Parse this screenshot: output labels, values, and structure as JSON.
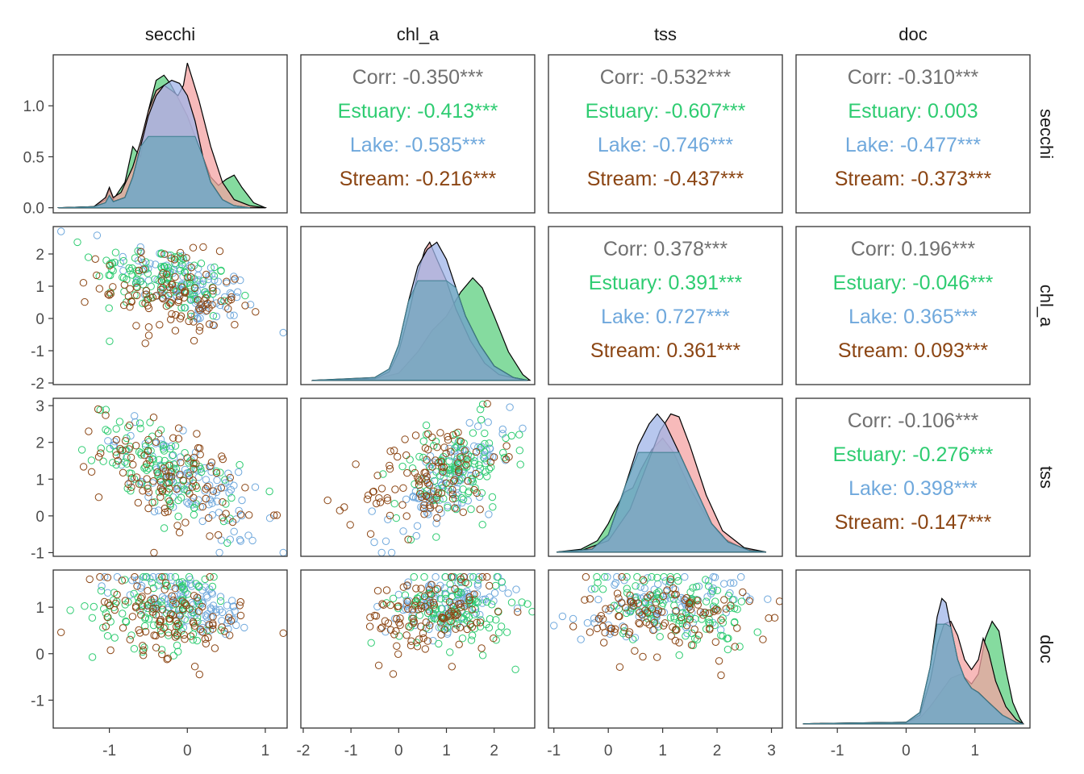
{
  "colors": {
    "estuary": "#2ecc71",
    "lake": "#6fa8dc",
    "stream": "#8b4513",
    "corr": "#707070",
    "frame": "#333333",
    "axis_text": "#4d4d4d"
  },
  "chart_data": {
    "type": "pairs",
    "variables": [
      "secchi",
      "chl_a",
      "tss",
      "doc"
    ],
    "groups": [
      {
        "name": "Estuary",
        "color": "#2ecc71",
        "density_fill": "#5ccf7f"
      },
      {
        "name": "Lake",
        "color": "#6fa8dc",
        "density_fill": "#9fb4e8"
      },
      {
        "name": "Stream",
        "color": "#8b4513",
        "density_fill": "#f4a3a3"
      }
    ],
    "x_ticks": {
      "secchi": [
        -1,
        0,
        1
      ],
      "chl_a": [
        -2,
        -1,
        0,
        1,
        2
      ],
      "tss": [
        -1,
        0,
        1,
        2,
        3
      ],
      "doc": [
        -1,
        0,
        1
      ]
    },
    "y_ticks": {
      "secchi": [
        "0.0",
        "0.5",
        "1.0"
      ],
      "chl_a": [
        -2,
        -1,
        0,
        1,
        2
      ],
      "tss": [
        -1,
        0,
        1,
        2,
        3
      ],
      "doc": [
        -1,
        0,
        1
      ]
    },
    "ranges": {
      "secchi": [
        -1.72,
        1.28
      ],
      "chl_a": [
        -2.05,
        2.85
      ],
      "tss": [
        -1.1,
        3.2
      ],
      "doc": [
        -1.6,
        1.8
      ]
    },
    "secchi_density_ylim": [
      -0.05,
      1.5
    ],
    "correlations": [
      {
        "row": 0,
        "col": 1,
        "lines": [
          "Corr: -0.350***",
          "Estuary: -0.413***",
          "Lake: -0.585***",
          "Stream: -0.216***"
        ]
      },
      {
        "row": 0,
        "col": 2,
        "lines": [
          "Corr: -0.532***",
          "Estuary: -0.607***",
          "Lake: -0.746***",
          "Stream: -0.437***"
        ]
      },
      {
        "row": 0,
        "col": 3,
        "lines": [
          "Corr: -0.310***",
          "Estuary: 0.003",
          "Lake: -0.477***",
          "Stream: -0.373***"
        ]
      },
      {
        "row": 1,
        "col": 2,
        "lines": [
          "Corr: 0.378***",
          "Estuary: 0.391***",
          "Lake: 0.727***",
          "Stream: 0.361***"
        ]
      },
      {
        "row": 1,
        "col": 3,
        "lines": [
          "Corr: 0.196***",
          "Estuary: -0.046***",
          "Lake: 0.365***",
          "Stream: 0.093***"
        ]
      },
      {
        "row": 2,
        "col": 3,
        "lines": [
          "Corr: -0.106***",
          "Estuary: -0.276***",
          "Lake: 0.398***",
          "Stream: -0.147***"
        ]
      }
    ],
    "densities": {
      "secchi": {
        "Stream": [
          [
            -1.65,
            0
          ],
          [
            -1.2,
            0.01
          ],
          [
            -1.05,
            0.1
          ],
          [
            -1.0,
            0.2
          ],
          [
            -0.95,
            0.1
          ],
          [
            -0.85,
            0.15
          ],
          [
            -0.7,
            0.4
          ],
          [
            -0.6,
            0.65
          ],
          [
            -0.5,
            0.95
          ],
          [
            -0.4,
            1.15
          ],
          [
            -0.3,
            1.2
          ],
          [
            -0.2,
            1.15
          ],
          [
            -0.12,
            1.1
          ],
          [
            -0.05,
            1.2
          ],
          [
            0.0,
            1.42
          ],
          [
            0.05,
            1.3
          ],
          [
            0.15,
            1.05
          ],
          [
            0.3,
            0.6
          ],
          [
            0.45,
            0.25
          ],
          [
            0.6,
            0.08
          ],
          [
            0.8,
            0.02
          ],
          [
            1.0,
            0
          ]
        ],
        "Lake": [
          [
            -1.65,
            0
          ],
          [
            -1.2,
            0.01
          ],
          [
            -1.05,
            0.05
          ],
          [
            -1.0,
            0.12
          ],
          [
            -0.95,
            0.06
          ],
          [
            -0.8,
            0.1
          ],
          [
            -0.7,
            0.3
          ],
          [
            -0.6,
            0.6
          ],
          [
            -0.5,
            0.9
          ],
          [
            -0.4,
            1.1
          ],
          [
            -0.3,
            1.2
          ],
          [
            -0.2,
            1.25
          ],
          [
            -0.1,
            1.22
          ],
          [
            0.0,
            1.1
          ],
          [
            0.1,
            0.85
          ],
          [
            0.2,
            0.5
          ],
          [
            0.3,
            0.25
          ],
          [
            0.45,
            0.08
          ],
          [
            0.6,
            0.02
          ],
          [
            0.8,
            0
          ]
        ],
        "Estuary": [
          [
            -1.65,
            0
          ],
          [
            -1.2,
            0.01
          ],
          [
            -1.05,
            0.08
          ],
          [
            -1.0,
            0.18
          ],
          [
            -0.95,
            0.08
          ],
          [
            -0.8,
            0.25
          ],
          [
            -0.7,
            0.6
          ],
          [
            -0.6,
            0.5
          ],
          [
            -0.5,
            0.95
          ],
          [
            -0.4,
            1.25
          ],
          [
            -0.3,
            1.3
          ],
          [
            -0.22,
            1.22
          ],
          [
            -0.1,
            1.05
          ],
          [
            0.0,
            0.9
          ],
          [
            0.1,
            0.7
          ],
          [
            0.2,
            0.5
          ],
          [
            0.3,
            0.3
          ],
          [
            0.4,
            0.22
          ],
          [
            0.5,
            0.28
          ],
          [
            0.6,
            0.32
          ],
          [
            0.7,
            0.2
          ],
          [
            0.85,
            0.05
          ],
          [
            1.0,
            0
          ]
        ]
      },
      "chl_a": {
        "Stream": [
          [
            -1.8,
            0
          ],
          [
            -0.5,
            0.01
          ],
          [
            -0.2,
            0.06
          ],
          [
            0.0,
            0.2
          ],
          [
            0.2,
            0.45
          ],
          [
            0.4,
            0.75
          ],
          [
            0.55,
            0.92
          ],
          [
            0.65,
            0.97
          ],
          [
            0.8,
            0.85
          ],
          [
            1.0,
            0.7
          ],
          [
            1.2,
            0.5
          ],
          [
            1.5,
            0.28
          ],
          [
            1.8,
            0.12
          ],
          [
            2.1,
            0.04
          ],
          [
            2.5,
            0.01
          ],
          [
            2.7,
            0
          ]
        ],
        "Lake": [
          [
            -1.8,
            0
          ],
          [
            -0.5,
            0.02
          ],
          [
            -0.2,
            0.08
          ],
          [
            0.0,
            0.25
          ],
          [
            0.2,
            0.55
          ],
          [
            0.4,
            0.8
          ],
          [
            0.6,
            0.92
          ],
          [
            0.8,
            0.97
          ],
          [
            1.0,
            0.85
          ],
          [
            1.2,
            0.65
          ],
          [
            1.4,
            0.45
          ],
          [
            1.7,
            0.25
          ],
          [
            2.0,
            0.1
          ],
          [
            2.4,
            0.02
          ],
          [
            2.7,
            0
          ]
        ],
        "Estuary": [
          [
            -1.8,
            0
          ],
          [
            -0.5,
            0.01
          ],
          [
            0.0,
            0.05
          ],
          [
            0.4,
            0.2
          ],
          [
            0.7,
            0.35
          ],
          [
            1.0,
            0.45
          ],
          [
            1.3,
            0.62
          ],
          [
            1.55,
            0.72
          ],
          [
            1.75,
            0.65
          ],
          [
            2.0,
            0.45
          ],
          [
            2.3,
            0.2
          ],
          [
            2.6,
            0.04
          ],
          [
            2.75,
            0
          ]
        ]
      },
      "tss": {
        "Stream": [
          [
            -0.95,
            0
          ],
          [
            -0.5,
            0.01
          ],
          [
            0.0,
            0.08
          ],
          [
            0.4,
            0.3
          ],
          [
            0.7,
            0.6
          ],
          [
            0.95,
            0.85
          ],
          [
            1.15,
            0.97
          ],
          [
            1.3,
            0.95
          ],
          [
            1.5,
            0.75
          ],
          [
            1.8,
            0.4
          ],
          [
            2.1,
            0.15
          ],
          [
            2.5,
            0.03
          ],
          [
            2.9,
            0
          ]
        ],
        "Lake": [
          [
            -0.95,
            0
          ],
          [
            -0.3,
            0.02
          ],
          [
            0.0,
            0.12
          ],
          [
            0.3,
            0.45
          ],
          [
            0.55,
            0.75
          ],
          [
            0.75,
            0.9
          ],
          [
            0.9,
            0.97
          ],
          [
            1.05,
            0.9
          ],
          [
            1.3,
            0.7
          ],
          [
            1.6,
            0.45
          ],
          [
            1.9,
            0.2
          ],
          [
            2.2,
            0.07
          ],
          [
            2.6,
            0.01
          ],
          [
            2.9,
            0
          ]
        ],
        "Estuary": [
          [
            -0.95,
            0
          ],
          [
            -0.5,
            0.02
          ],
          [
            -0.2,
            0.08
          ],
          [
            0.0,
            0.2
          ],
          [
            0.1,
            0.28
          ],
          [
            0.3,
            0.42
          ],
          [
            0.45,
            0.45
          ],
          [
            0.6,
            0.58
          ],
          [
            0.8,
            0.72
          ],
          [
            1.0,
            0.8
          ],
          [
            1.2,
            0.7
          ],
          [
            1.5,
            0.45
          ],
          [
            1.8,
            0.25
          ],
          [
            2.1,
            0.1
          ],
          [
            2.5,
            0.02
          ],
          [
            2.9,
            0
          ]
        ]
      },
      "doc": {
        "Stream": [
          [
            -1.5,
            0
          ],
          [
            0.0,
            0.01
          ],
          [
            0.2,
            0.06
          ],
          [
            0.35,
            0.3
          ],
          [
            0.45,
            0.55
          ],
          [
            0.55,
            0.7
          ],
          [
            0.65,
            0.72
          ],
          [
            0.75,
            0.62
          ],
          [
            0.85,
            0.45
          ],
          [
            0.95,
            0.38
          ],
          [
            1.05,
            0.45
          ],
          [
            1.12,
            0.6
          ],
          [
            1.2,
            0.5
          ],
          [
            1.3,
            0.3
          ],
          [
            1.45,
            0.12
          ],
          [
            1.6,
            0.03
          ],
          [
            1.7,
            0
          ]
        ],
        "Lake": [
          [
            -1.5,
            0
          ],
          [
            0.0,
            0.01
          ],
          [
            0.2,
            0.08
          ],
          [
            0.35,
            0.4
          ],
          [
            0.45,
            0.75
          ],
          [
            0.52,
            0.88
          ],
          [
            0.58,
            0.85
          ],
          [
            0.65,
            0.68
          ],
          [
            0.75,
            0.45
          ],
          [
            0.85,
            0.32
          ],
          [
            0.95,
            0.25
          ],
          [
            1.05,
            0.22
          ],
          [
            1.2,
            0.15
          ],
          [
            1.4,
            0.06
          ],
          [
            1.6,
            0.01
          ],
          [
            1.7,
            0
          ]
        ],
        "Estuary": [
          [
            -1.5,
            0
          ],
          [
            0.0,
            0.01
          ],
          [
            0.2,
            0.04
          ],
          [
            0.35,
            0.12
          ],
          [
            0.5,
            0.22
          ],
          [
            0.65,
            0.32
          ],
          [
            0.8,
            0.35
          ],
          [
            0.95,
            0.28
          ],
          [
            1.05,
            0.35
          ],
          [
            1.15,
            0.6
          ],
          [
            1.25,
            0.72
          ],
          [
            1.35,
            0.65
          ],
          [
            1.45,
            0.38
          ],
          [
            1.55,
            0.15
          ],
          [
            1.65,
            0.04
          ],
          [
            1.7,
            0
          ]
        ]
      }
    },
    "scatter_summary": {
      "secchi": {
        "Estuary": [
          -0.3,
          0.45
        ],
        "Lake": [
          0.0,
          0.45
        ],
        "Stream": [
          -0.2,
          0.45
        ]
      },
      "chl_a": {
        "Estuary": [
          1.2,
          0.6
        ],
        "Lake": [
          1.0,
          0.65
        ],
        "Stream": [
          0.7,
          0.7
        ]
      },
      "tss": {
        "Estuary": [
          1.2,
          0.7
        ],
        "Lake": [
          0.9,
          0.8
        ],
        "Stream": [
          1.1,
          0.75
        ]
      },
      "doc": {
        "Estuary": [
          1.0,
          0.45
        ],
        "Lake": [
          1.1,
          0.35
        ],
        "Stream": [
          0.8,
          0.45
        ]
      }
    },
    "correlation_within": {
      "secchi|chl_a": {
        "Estuary": -0.413,
        "Lake": -0.585,
        "Stream": -0.216
      },
      "secchi|tss": {
        "Estuary": -0.607,
        "Lake": -0.746,
        "Stream": -0.437
      },
      "secchi|doc": {
        "Estuary": 0.003,
        "Lake": -0.477,
        "Stream": -0.373
      },
      "chl_a|tss": {
        "Estuary": 0.391,
        "Lake": 0.727,
        "Stream": 0.361
      },
      "chl_a|doc": {
        "Estuary": -0.046,
        "Lake": 0.365,
        "Stream": 0.093
      },
      "tss|doc": {
        "Estuary": -0.276,
        "Lake": 0.398,
        "Stream": -0.147
      }
    }
  }
}
